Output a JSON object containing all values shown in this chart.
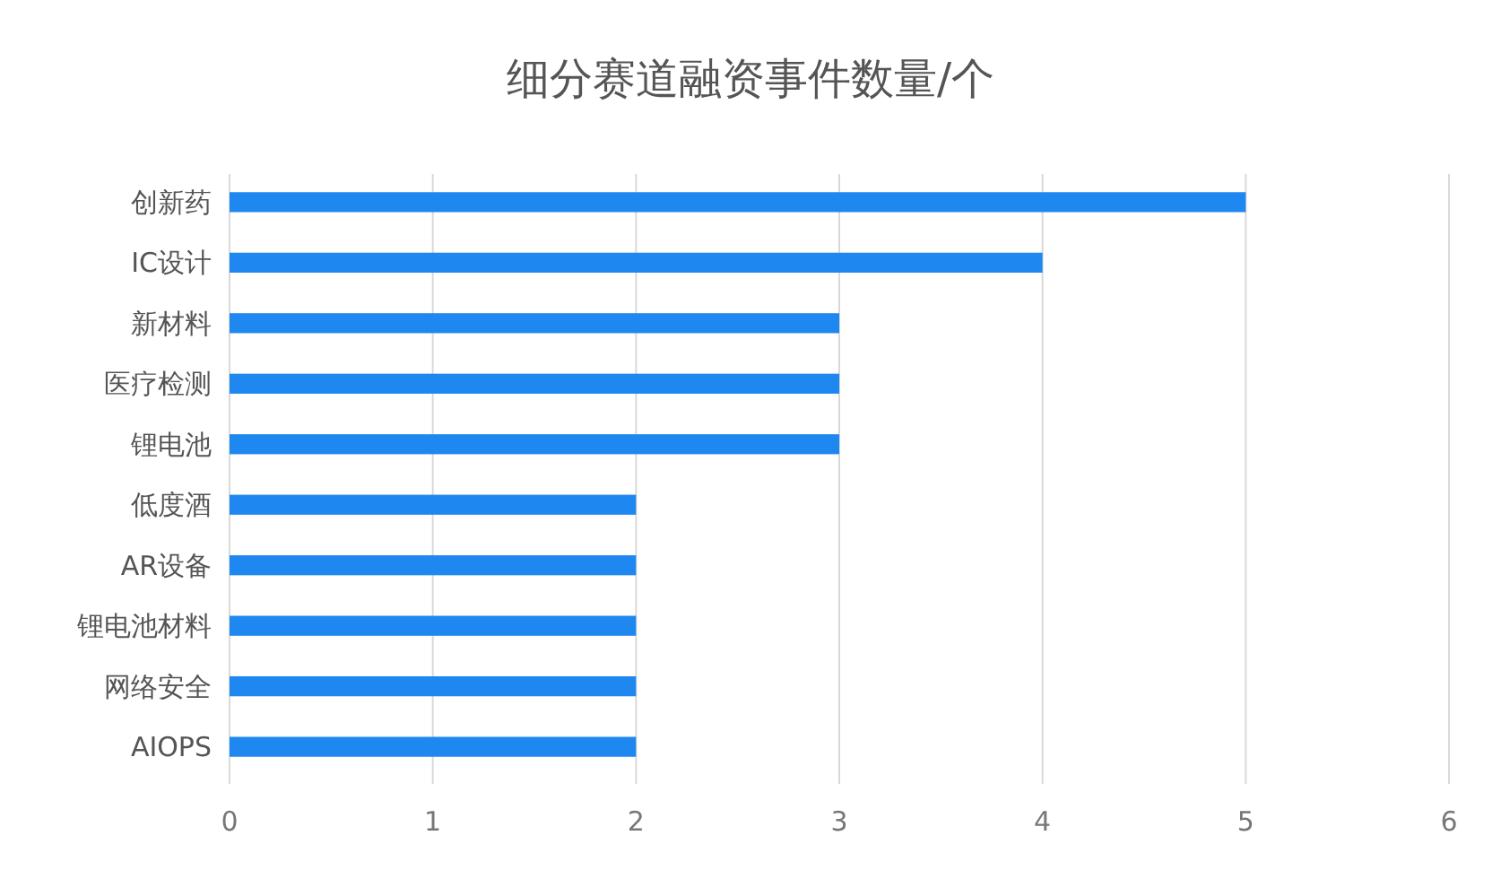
{
  "chart_data": {
    "type": "bar",
    "orientation": "horizontal",
    "title": "细分赛道融资事件数量/个",
    "categories": [
      "创新药",
      "IC设计",
      "新材料",
      "医疗检测",
      "锂电池",
      "低度酒",
      "AR设备",
      "锂电池材料",
      "网络安全",
      "AIOPS"
    ],
    "values": [
      5,
      4,
      3,
      3,
      3,
      2,
      2,
      2,
      2,
      2
    ],
    "color": "#1f88f0",
    "xlim": [
      0,
      6
    ],
    "xticks": [
      0,
      1,
      2,
      3,
      4,
      5,
      6
    ],
    "grid": "x"
  }
}
